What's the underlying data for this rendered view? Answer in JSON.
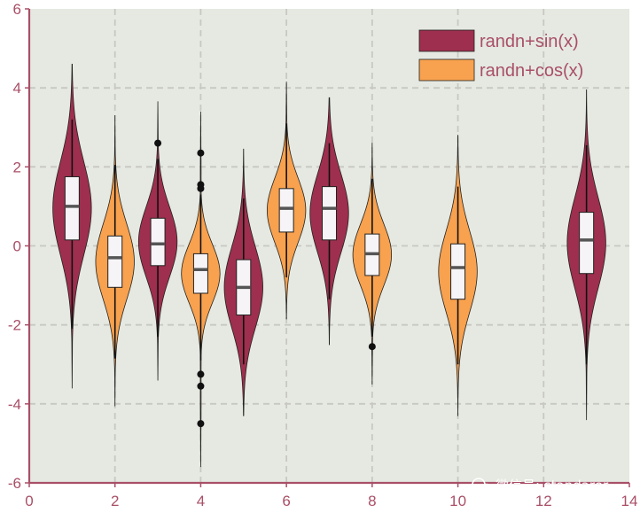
{
  "chart_data": {
    "type": "violin",
    "xlim": [
      0,
      14
    ],
    "ylim": [
      -6,
      6
    ],
    "x_ticks": [
      "0",
      "2",
      "4",
      "6",
      "8",
      "10",
      "12",
      "14"
    ],
    "y_ticks": [
      "-6",
      "-4",
      "-2",
      "0",
      "2",
      "4",
      "6"
    ],
    "grid": true,
    "legend_position": "top-right",
    "colors": {
      "background": "#e5e9e1",
      "axis": "#a94f67",
      "grid": "#c8c8c2",
      "randn+sin(x)": "#9e2f4e",
      "randn+cos(x)": "#f8a14e"
    },
    "series": [
      {
        "name": "randn+sin(x)",
        "violins": [
          {
            "x": 1,
            "min": -3.6,
            "max": 4.6,
            "q1": 0.15,
            "median": 1.0,
            "q3": 1.75,
            "whisker_low": -2.1,
            "whisker_high": 3.2,
            "outliers": []
          },
          {
            "x": 3,
            "min": -3.4,
            "max": 3.65,
            "q1": -0.5,
            "median": 0.05,
            "q3": 0.7,
            "whisker_low": -2.3,
            "whisker_high": 2.2,
            "outliers": [
              2.6
            ]
          },
          {
            "x": 5,
            "min": -4.3,
            "max": 2.45,
            "q1": -1.75,
            "median": -1.05,
            "q3": -0.35,
            "whisker_low": -3.0,
            "whisker_high": 1.2,
            "outliers": []
          },
          {
            "x": 7,
            "min": -2.5,
            "max": 3.75,
            "q1": 0.15,
            "median": 0.95,
            "q3": 1.5,
            "whisker_low": -1.35,
            "whisker_high": 2.6,
            "outliers": []
          },
          {
            "x": 13,
            "min": -4.4,
            "max": 3.95,
            "q1": -0.7,
            "median": 0.15,
            "q3": 0.85,
            "whisker_low": -3.0,
            "whisker_high": 2.55,
            "outliers": []
          }
        ]
      },
      {
        "name": "randn+cos(x)",
        "violins": [
          {
            "x": 2,
            "min": -4.05,
            "max": 3.3,
            "q1": -1.05,
            "median": -0.3,
            "q3": 0.25,
            "whisker_low": -2.85,
            "whisker_high": 2.05,
            "outliers": []
          },
          {
            "x": 4,
            "min": -5.6,
            "max": 3.4,
            "q1": -1.2,
            "median": -0.6,
            "q3": -0.2,
            "whisker_low": -2.9,
            "whisker_high": 1.3,
            "outliers": [
              2.35,
              1.55,
              1.45,
              -3.25,
              -3.55,
              -4.5
            ]
          },
          {
            "x": 6,
            "min": -1.85,
            "max": 4.15,
            "q1": 0.35,
            "median": 0.95,
            "q3": 1.45,
            "whisker_low": -0.8,
            "whisker_high": 3.1,
            "outliers": []
          },
          {
            "x": 8,
            "min": -3.5,
            "max": 2.6,
            "q1": -0.75,
            "median": -0.2,
            "q3": 0.3,
            "whisker_low": -2.3,
            "whisker_high": 1.7,
            "outliers": [
              -2.55
            ]
          },
          {
            "x": 10,
            "min": -4.3,
            "max": 2.8,
            "q1": -1.35,
            "median": -0.55,
            "q3": 0.05,
            "whisker_low": -3.0,
            "whisker_high": 1.5,
            "outliers": []
          }
        ]
      }
    ]
  },
  "watermark": "微信号: standarer"
}
